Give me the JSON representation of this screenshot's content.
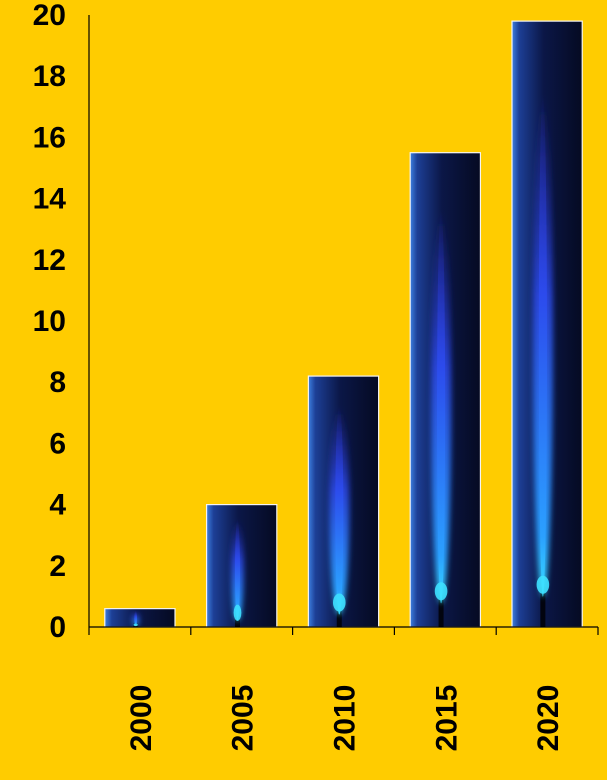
{
  "chart_data": {
    "type": "bar",
    "categories": [
      "2000",
      "2005",
      "2010",
      "2015",
      "2020"
    ],
    "values": [
      0.6,
      4.0,
      8.2,
      15.5,
      19.8
    ],
    "title": "",
    "xlabel": "",
    "ylabel": "",
    "ylim": [
      0,
      20
    ],
    "yticks": [
      "0",
      "2",
      "4",
      "6",
      "8",
      "10",
      "12",
      "14",
      "16",
      "18",
      "20"
    ],
    "grid": false,
    "legend": "none",
    "bar_fill": "blue gas flame on dark navy gradient",
    "colors": {
      "background": "#FFCC00",
      "axis": "#000000",
      "text": "#000000",
      "bar_dark": "#050a22",
      "bar_light": "#3d7fe0",
      "flame_outer": "#2d5cf0",
      "flame_core": "#37dcff"
    }
  }
}
